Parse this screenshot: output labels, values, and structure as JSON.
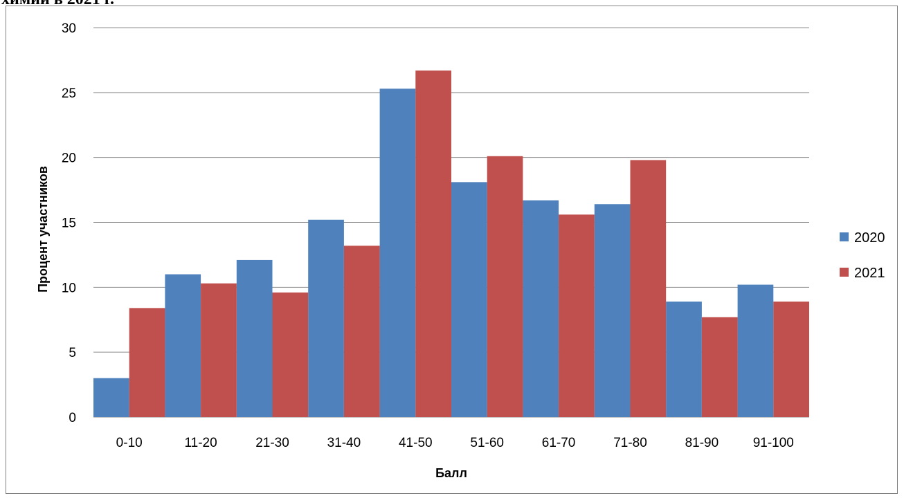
{
  "page": {
    "top_text": "химии в 2021 г."
  },
  "chart_data": {
    "type": "bar",
    "title": "",
    "xlabel": "Балл",
    "ylabel": "Процент участников",
    "ylim": [
      0,
      30
    ],
    "yticks": [
      0,
      5,
      10,
      15,
      20,
      25,
      30
    ],
    "grid": true,
    "legend_position": "right",
    "categories": [
      "0-10",
      "11-20",
      "21-30",
      "31-40",
      "41-50",
      "51-60",
      "61-70",
      "71-80",
      "81-90",
      "91-100"
    ],
    "series": [
      {
        "name": "2020",
        "color": "#4F81BD",
        "values": [
          3.0,
          11.0,
          12.1,
          15.2,
          25.3,
          18.1,
          16.7,
          16.4,
          8.9,
          10.2
        ]
      },
      {
        "name": "2021",
        "color": "#C0504D",
        "values": [
          8.4,
          10.3,
          9.6,
          13.2,
          26.7,
          20.1,
          15.6,
          19.8,
          7.7,
          8.9
        ]
      }
    ]
  }
}
